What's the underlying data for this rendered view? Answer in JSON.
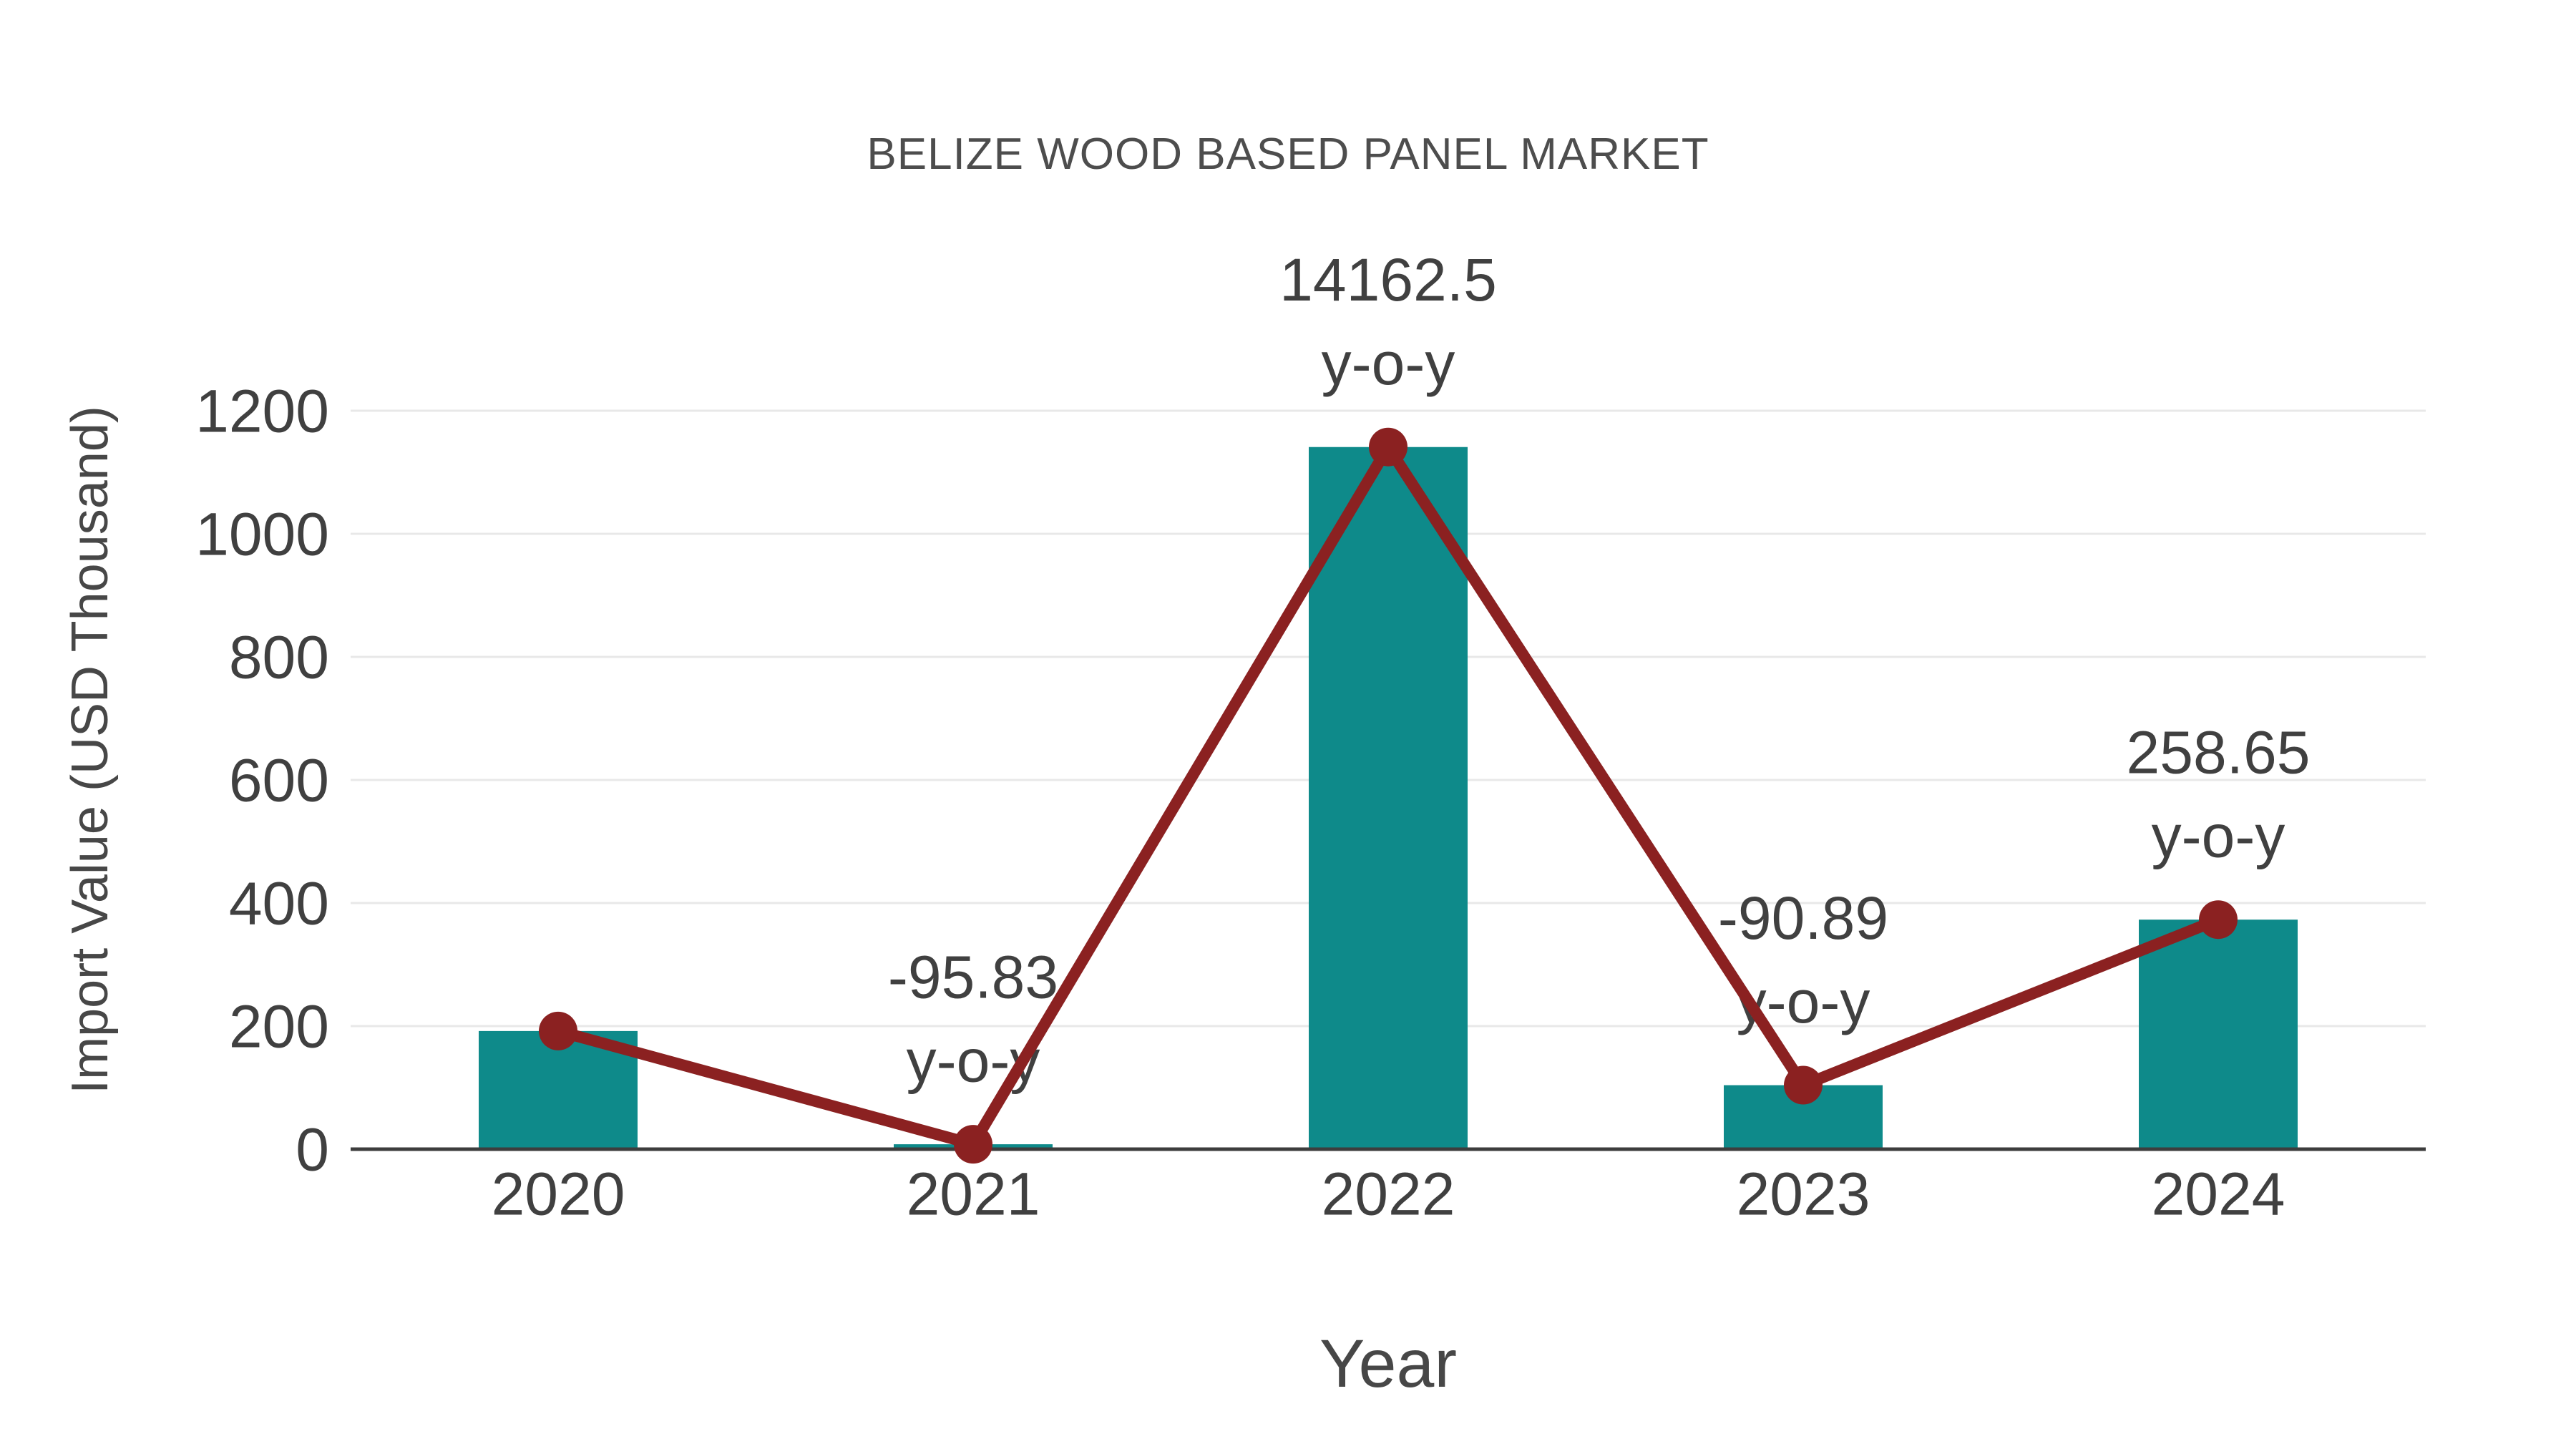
{
  "chart_data": {
    "type": "bar",
    "subtype": "bar-with-line-overlay",
    "title": "BELIZE WOOD BASED PANEL MARKET",
    "xlabel": "Year",
    "ylabel": "Import Value (USD Thousand)",
    "categories": [
      "2020",
      "2021",
      "2022",
      "2023",
      "2024"
    ],
    "series": [
      {
        "name": "Import Value bars",
        "type": "bar",
        "color": "#0e8a8a",
        "values": [
          192,
          8,
          1141,
          104,
          373
        ]
      },
      {
        "name": "Import Value trend",
        "type": "line",
        "color": "#8b2121",
        "marker": "circle",
        "values": [
          192,
          8,
          1141,
          104,
          373
        ]
      }
    ],
    "annotations": [
      {
        "category": "2021",
        "text": "-95.83",
        "subtext": "y-o-y"
      },
      {
        "category": "2022",
        "text": "14162.5",
        "subtext": "y-o-y"
      },
      {
        "category": "2023",
        "text": "-90.89",
        "subtext": "y-o-y"
      },
      {
        "category": "2024",
        "text": "258.65",
        "subtext": "y-o-y"
      }
    ],
    "yticks": [
      0,
      200,
      400,
      600,
      800,
      1000,
      1200
    ],
    "ylim": [
      0,
      1280
    ],
    "grid": "horizontal",
    "legend_position": "none",
    "text_color": "#404040",
    "axis_color": "#3d3d3d",
    "grid_color": "#e8e8e8",
    "background": "#ffffff"
  }
}
